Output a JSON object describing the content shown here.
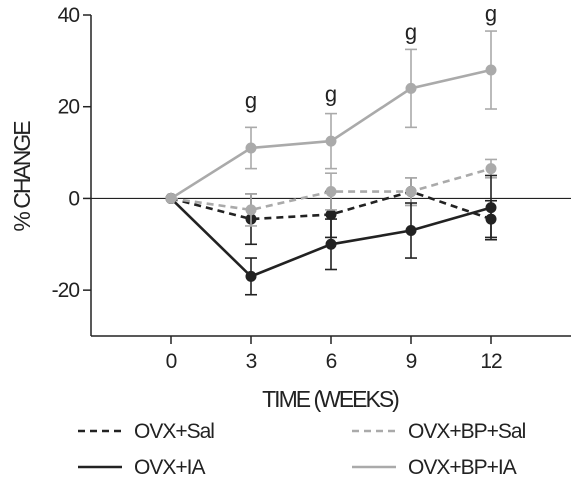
{
  "chart_data": {
    "type": "line",
    "title": "",
    "xlabel": "TIME (WEEKS)",
    "ylabel": "% CHANGE",
    "x": [
      0,
      3,
      6,
      9,
      12
    ],
    "x_tick_labels": [
      "0",
      "3",
      "6",
      "9",
      "12"
    ],
    "xlim": [
      -3,
      15
    ],
    "ylim": [
      -30,
      40
    ],
    "y_ticks": [
      -20,
      0,
      20,
      40
    ],
    "y_tick_labels": [
      "-20",
      "0",
      "20",
      "40"
    ],
    "grid": false,
    "zero_line": true,
    "legend_position": "bottom",
    "series": [
      {
        "name": "OVX+Sal",
        "color": "#222222",
        "line_style": "dashed",
        "values": [
          0,
          -4.5,
          -3.5,
          1.5,
          -4.5
        ],
        "error": [
          0,
          5.5,
          5.0,
          3.0,
          4.0
        ]
      },
      {
        "name": "OVX+BP+Sal",
        "color": "#aaaaaa",
        "line_style": "dashed",
        "values": [
          0,
          -2.5,
          1.5,
          1.5,
          6.5
        ],
        "error": [
          0,
          3.5,
          4.0,
          3.0,
          2.0
        ]
      },
      {
        "name": "OVX+IA",
        "color": "#222222",
        "line_style": "solid",
        "values": [
          0,
          -17,
          -10,
          -7,
          -2
        ],
        "error": [
          0,
          4.0,
          5.5,
          6.0,
          7.0
        ]
      },
      {
        "name": "OVX+BP+IA",
        "color": "#aaaaaa",
        "line_style": "solid",
        "values": [
          0,
          11,
          12.5,
          24,
          28
        ],
        "error": [
          0,
          4.5,
          6.0,
          8.5,
          8.5
        ]
      }
    ],
    "annotations": [
      {
        "text": "g",
        "x": 3,
        "y": 21
      },
      {
        "text": "g",
        "x": 6,
        "y": 22.5
      },
      {
        "text": "g",
        "x": 9,
        "y": 36
      },
      {
        "text": "g",
        "x": 12,
        "y": 40
      }
    ]
  }
}
